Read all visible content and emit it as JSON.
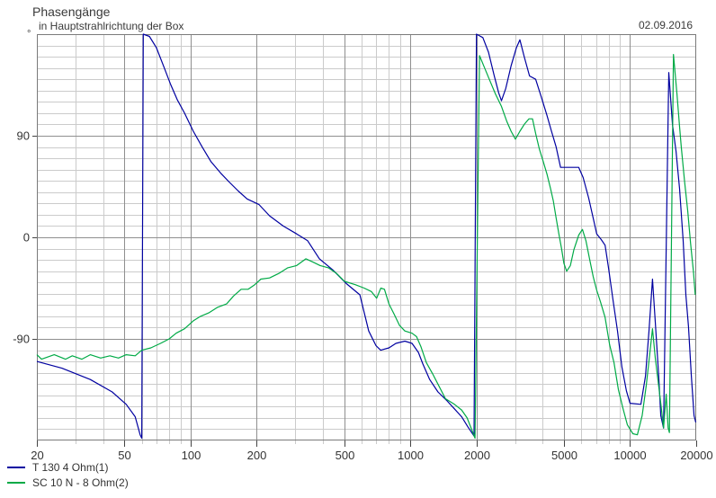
{
  "header": {
    "title": "Phasengänge",
    "subtitle": "in Hauptstrahlrichtung der Box",
    "date": "02.09.2016"
  },
  "axes": {
    "y_unit": "°",
    "y_ticks": [
      {
        "value": 90,
        "label": "90"
      },
      {
        "value": 0,
        "label": "0"
      },
      {
        "value": -90,
        "label": "-90"
      }
    ],
    "x_ticks": [
      {
        "value": 20,
        "label": "20"
      },
      {
        "value": 50,
        "label": "50"
      },
      {
        "value": 100,
        "label": "100"
      },
      {
        "value": 200,
        "label": "200"
      },
      {
        "value": 500,
        "label": "500"
      },
      {
        "value": 1000,
        "label": "1000"
      },
      {
        "value": 2000,
        "label": "2000"
      },
      {
        "value": 5000,
        "label": "5000"
      },
      {
        "value": 10000,
        "label": "10000"
      },
      {
        "value": 20000,
        "label": "20000"
      }
    ]
  },
  "colors": {
    "grid_minor": "#cbcbcb",
    "grid_major": "#8f8f8f",
    "border": "#7a7a7a",
    "tick": "#444444",
    "text": "#333333"
  },
  "chart_data": {
    "type": "line",
    "title": "Phasengänge",
    "x_scale": "log",
    "x_range": [
      20,
      20000
    ],
    "y_range": [
      -180,
      180
    ],
    "y_unit": "degrees",
    "grid": true,
    "legend_position": "bottom-left",
    "series": [
      {
        "name": "T 130 4 Ohm(1)",
        "color": "#0000a0",
        "points": [
          [
            20,
            -110
          ],
          [
            26,
            -116
          ],
          [
            35,
            -126
          ],
          [
            44,
            -137
          ],
          [
            51,
            -148
          ],
          [
            56,
            -159
          ],
          [
            59,
            -175
          ],
          [
            60,
            -178
          ],
          [
            61,
            180
          ],
          [
            65,
            178
          ],
          [
            70,
            168
          ],
          [
            76,
            150
          ],
          [
            81,
            136
          ],
          [
            87,
            122
          ],
          [
            94,
            110
          ],
          [
            103,
            94
          ],
          [
            113,
            80
          ],
          [
            124,
            67
          ],
          [
            137,
            57
          ],
          [
            150,
            49
          ],
          [
            165,
            41
          ],
          [
            181,
            34
          ],
          [
            205,
            29
          ],
          [
            229,
            19
          ],
          [
            264,
            10
          ],
          [
            304,
            3
          ],
          [
            341,
            -3
          ],
          [
            386,
            -19
          ],
          [
            445,
            -29
          ],
          [
            512,
            -41
          ],
          [
            590,
            -51
          ],
          [
            647,
            -83
          ],
          [
            698,
            -96
          ],
          [
            733,
            -100
          ],
          [
            800,
            -98
          ],
          [
            860,
            -94
          ],
          [
            945,
            -92
          ],
          [
            1019,
            -94
          ],
          [
            1089,
            -102
          ],
          [
            1140,
            -112
          ],
          [
            1226,
            -126
          ],
          [
            1337,
            -137
          ],
          [
            1473,
            -145
          ],
          [
            1588,
            -152
          ],
          [
            1713,
            -159
          ],
          [
            1829,
            -168
          ],
          [
            1950,
            -176
          ],
          [
            2000,
            180
          ],
          [
            2140,
            177
          ],
          [
            2270,
            164
          ],
          [
            2410,
            143
          ],
          [
            2525,
            128
          ],
          [
            2600,
            121
          ],
          [
            2720,
            132
          ],
          [
            2875,
            152
          ],
          [
            3040,
            168
          ],
          [
            3155,
            175
          ],
          [
            3300,
            160
          ],
          [
            3490,
            143
          ],
          [
            3720,
            140
          ],
          [
            3950,
            124
          ],
          [
            4190,
            108
          ],
          [
            4390,
            94
          ],
          [
            4610,
            80
          ],
          [
            4830,
            62
          ],
          [
            5840,
            62
          ],
          [
            6120,
            53
          ],
          [
            6480,
            35
          ],
          [
            6800,
            17
          ],
          [
            7050,
            3
          ],
          [
            7390,
            -2
          ],
          [
            7700,
            -7
          ],
          [
            7980,
            -27
          ],
          [
            8360,
            -55
          ],
          [
            8770,
            -83
          ],
          [
            9180,
            -115
          ],
          [
            9630,
            -136
          ],
          [
            10000,
            -147
          ],
          [
            11200,
            -148
          ],
          [
            11750,
            -123
          ],
          [
            12200,
            -83
          ],
          [
            12650,
            -37
          ],
          [
            13030,
            -75
          ],
          [
            13500,
            -123
          ],
          [
            13800,
            -158
          ],
          [
            14200,
            -169
          ],
          [
            15000,
            146
          ],
          [
            15600,
            100
          ],
          [
            16200,
            76
          ],
          [
            16800,
            43
          ],
          [
            17450,
            -3
          ],
          [
            17950,
            -51
          ],
          [
            18450,
            -79
          ],
          [
            19000,
            -123
          ],
          [
            19550,
            -158
          ],
          [
            19900,
            -164
          ]
        ]
      },
      {
        "name": "SC 10 N - 8 Ohm(2)",
        "color": "#00aa46",
        "points": [
          [
            20,
            -104
          ],
          [
            21,
            -108
          ],
          [
            24,
            -104
          ],
          [
            27,
            -108
          ],
          [
            29,
            -105
          ],
          [
            32,
            -108
          ],
          [
            35,
            -104
          ],
          [
            39,
            -107
          ],
          [
            43,
            -105
          ],
          [
            47,
            -107
          ],
          [
            51,
            -104
          ],
          [
            56,
            -105
          ],
          [
            60,
            -100
          ],
          [
            66,
            -98
          ],
          [
            73,
            -94
          ],
          [
            80,
            -90
          ],
          [
            86,
            -85
          ],
          [
            94,
            -81
          ],
          [
            103,
            -74
          ],
          [
            111,
            -70
          ],
          [
            121,
            -67
          ],
          [
            133,
            -62
          ],
          [
            146,
            -59
          ],
          [
            157,
            -52
          ],
          [
            170,
            -46
          ],
          [
            183,
            -46
          ],
          [
            196,
            -42
          ],
          [
            209,
            -37
          ],
          [
            229,
            -36
          ],
          [
            252,
            -32
          ],
          [
            277,
            -27
          ],
          [
            304,
            -25
          ],
          [
            335,
            -19
          ],
          [
            361,
            -22
          ],
          [
            389,
            -25
          ],
          [
            424,
            -27
          ],
          [
            462,
            -32
          ],
          [
            502,
            -39
          ],
          [
            562,
            -42
          ],
          [
            617,
            -45
          ],
          [
            665,
            -48
          ],
          [
            703,
            -54
          ],
          [
            735,
            -45
          ],
          [
            763,
            -46
          ],
          [
            800,
            -59
          ],
          [
            844,
            -68
          ],
          [
            893,
            -78
          ],
          [
            945,
            -83
          ],
          [
            1019,
            -85
          ],
          [
            1068,
            -88
          ],
          [
            1119,
            -97
          ],
          [
            1184,
            -111
          ],
          [
            1264,
            -121
          ],
          [
            1352,
            -132
          ],
          [
            1446,
            -143
          ],
          [
            1588,
            -148
          ],
          [
            1713,
            -153
          ],
          [
            1813,
            -160
          ],
          [
            1900,
            -170
          ],
          [
            1970,
            -178
          ],
          [
            2065,
            161
          ],
          [
            2180,
            150
          ],
          [
            2310,
            138
          ],
          [
            2440,
            127
          ],
          [
            2600,
            116
          ],
          [
            2745,
            103
          ],
          [
            2875,
            94
          ],
          [
            3010,
            87
          ],
          [
            3155,
            94
          ],
          [
            3300,
            100
          ],
          [
            3465,
            105
          ],
          [
            3600,
            105
          ],
          [
            3720,
            92
          ],
          [
            3870,
            78
          ],
          [
            4030,
            67
          ],
          [
            4190,
            56
          ],
          [
            4350,
            43
          ],
          [
            4480,
            32
          ],
          [
            4610,
            17
          ],
          [
            4745,
            3
          ],
          [
            4880,
            -10
          ],
          [
            5000,
            -23
          ],
          [
            5150,
            -30
          ],
          [
            5350,
            -25
          ],
          [
            5550,
            -11
          ],
          [
            5840,
            2
          ],
          [
            6070,
            7
          ],
          [
            6300,
            -3
          ],
          [
            6540,
            -19
          ],
          [
            6800,
            -35
          ],
          [
            7050,
            -47
          ],
          [
            7330,
            -57
          ],
          [
            7700,
            -71
          ],
          [
            8070,
            -95
          ],
          [
            8450,
            -111
          ],
          [
            8850,
            -135
          ],
          [
            9270,
            -151
          ],
          [
            9720,
            -166
          ],
          [
            10300,
            -174
          ],
          [
            10800,
            -175
          ],
          [
            11350,
            -158
          ],
          [
            11850,
            -131
          ],
          [
            12300,
            -103
          ],
          [
            12650,
            -81
          ],
          [
            13030,
            -107
          ],
          [
            13500,
            -132
          ],
          [
            13800,
            -147
          ],
          [
            14200,
            -169
          ],
          [
            14600,
            -139
          ],
          [
            14900,
            -169
          ],
          [
            15100,
            -173
          ],
          [
            15750,
            162
          ],
          [
            16350,
            127
          ],
          [
            16800,
            98
          ],
          [
            17100,
            80
          ],
          [
            17700,
            50
          ],
          [
            18300,
            23
          ],
          [
            18850,
            -5
          ],
          [
            19450,
            -31
          ],
          [
            19800,
            -51
          ]
        ]
      }
    ]
  }
}
